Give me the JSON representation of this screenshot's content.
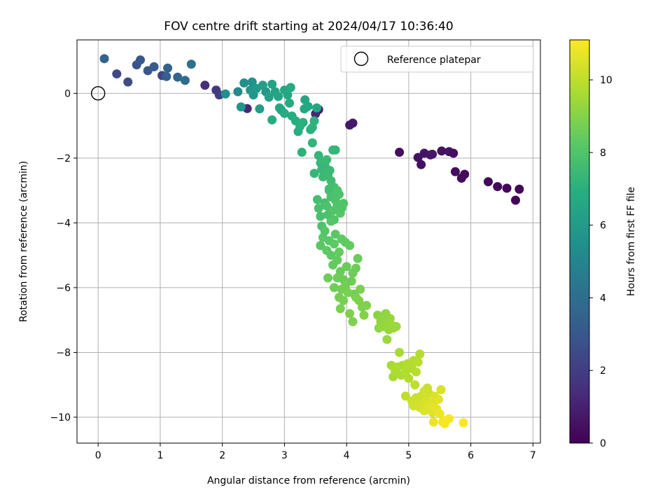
{
  "chart_data": {
    "type": "scatter",
    "title": "FOV centre drift starting at 2024/04/17 10:36:40",
    "xlabel": "Angular distance from reference (arcmin)",
    "ylabel": "Rotation from reference (arcmin)",
    "xlim": [
      -0.34,
      7.12
    ],
    "ylim": [
      -10.8,
      1.65
    ],
    "xticks": [
      0,
      1,
      2,
      3,
      4,
      5,
      6,
      7
    ],
    "yticks": [
      -10,
      -8,
      -6,
      -4,
      -2,
      0
    ],
    "grid": true,
    "legend": {
      "location": "top-right",
      "entries": [
        "Reference platepar"
      ]
    },
    "reference_point": {
      "x": 0,
      "y": 0
    },
    "colorbar": {
      "label": "Hours from first FF file",
      "min": 0,
      "max": 11.1,
      "ticks": [
        0,
        2,
        4,
        6,
        8,
        10
      ],
      "colormap": "viridis"
    },
    "series": [
      {
        "points": [
          [
            4.85,
            -1.82,
            0.4
          ],
          [
            5.15,
            -1.98,
            0.5
          ],
          [
            5.2,
            -2.2,
            0.5
          ],
          [
            5.25,
            -1.85,
            0.6
          ],
          [
            5.35,
            -1.9,
            0.6
          ],
          [
            5.38,
            -1.88,
            0.7
          ],
          [
            5.53,
            -1.78,
            0.5
          ],
          [
            5.65,
            -1.8,
            0.6
          ],
          [
            5.72,
            -1.85,
            0.4
          ],
          [
            5.75,
            -2.42,
            0.4
          ],
          [
            5.85,
            -2.62,
            0.3
          ],
          [
            5.9,
            -2.5,
            0.3
          ],
          [
            6.28,
            -2.73,
            0.2
          ],
          [
            6.43,
            -2.88,
            0.2
          ],
          [
            6.58,
            -2.93,
            0.2
          ],
          [
            6.72,
            -3.3,
            0.1
          ],
          [
            6.78,
            -2.96,
            0.1
          ],
          [
            4.05,
            -0.98,
            0.8
          ],
          [
            4.1,
            -0.92,
            0.8
          ],
          [
            3.55,
            -0.5,
            1.0
          ],
          [
            3.5,
            -0.63,
            1.2
          ],
          [
            1.72,
            0.25,
            1.5
          ],
          [
            1.9,
            0.1,
            1.8
          ],
          [
            1.95,
            -0.05,
            2.0
          ],
          [
            2.4,
            -0.47,
            1.2
          ],
          [
            1.03,
            0.55,
            2.2
          ],
          [
            0.3,
            0.6,
            2.4
          ],
          [
            0.48,
            0.35,
            2.6
          ],
          [
            0.62,
            0.88,
            2.8
          ],
          [
            0.68,
            1.03,
            3.0
          ],
          [
            0.8,
            0.7,
            3.0
          ],
          [
            0.9,
            0.82,
            3.2
          ],
          [
            1.1,
            0.52,
            3.4
          ],
          [
            1.12,
            0.78,
            3.5
          ],
          [
            1.28,
            0.5,
            3.7
          ],
          [
            1.4,
            0.4,
            3.8
          ],
          [
            1.5,
            0.9,
            4.0
          ],
          [
            0.1,
            1.07,
            3.5
          ],
          [
            2.05,
            -0.02,
            5.5
          ],
          [
            2.25,
            0.05,
            5.2
          ],
          [
            2.3,
            -0.42,
            5.8
          ],
          [
            2.35,
            0.32,
            5.5
          ],
          [
            2.45,
            0.1,
            5.8
          ],
          [
            2.48,
            0.35,
            5.6
          ],
          [
            2.5,
            -0.05,
            5.9
          ],
          [
            2.55,
            0.15,
            6.0
          ],
          [
            2.6,
            -0.48,
            6.1
          ],
          [
            2.65,
            0.25,
            6.2
          ],
          [
            2.7,
            0.05,
            6.0
          ],
          [
            2.75,
            -0.12,
            6.3
          ],
          [
            2.8,
            0.28,
            6.4
          ],
          [
            2.85,
            0.05,
            6.3
          ],
          [
            2.9,
            -0.1,
            6.5
          ],
          [
            2.92,
            -0.45,
            6.6
          ],
          [
            2.95,
            -0.52,
            6.5
          ],
          [
            3.0,
            0.1,
            6.5
          ],
          [
            3.05,
            -0.05,
            6.6
          ],
          [
            3.08,
            -0.3,
            6.7
          ],
          [
            3.1,
            0.18,
            6.7
          ],
          [
            3.12,
            -0.7,
            6.8
          ],
          [
            3.18,
            -0.85,
            6.9
          ],
          [
            3.22,
            -1.18,
            6.9
          ],
          [
            3.25,
            -1.02,
            7.0
          ],
          [
            3.3,
            -0.9,
            7.0
          ],
          [
            3.32,
            -0.48,
            6.6
          ],
          [
            3.33,
            -0.2,
            6.5
          ],
          [
            3.38,
            -0.4,
            6.6
          ],
          [
            3.42,
            -1.12,
            7.0
          ],
          [
            3.45,
            -1.05,
            7.1
          ],
          [
            3.48,
            -0.85,
            7.1
          ],
          [
            3.52,
            -0.45,
            6.5
          ],
          [
            2.8,
            -0.82,
            6.8
          ],
          [
            3.0,
            -0.62,
            6.8
          ],
          [
            3.28,
            -1.82,
            7.1
          ],
          [
            3.45,
            -1.53,
            7.2
          ],
          [
            3.48,
            -2.47,
            7.3
          ],
          [
            3.55,
            -1.92,
            7.3
          ],
          [
            3.58,
            -2.15,
            7.4
          ],
          [
            3.6,
            -2.35,
            7.4
          ],
          [
            3.62,
            -2.58,
            7.5
          ],
          [
            3.65,
            -2.22,
            7.4
          ],
          [
            3.68,
            -2.05,
            7.5
          ],
          [
            3.7,
            -2.52,
            7.5
          ],
          [
            3.72,
            -2.95,
            7.6
          ],
          [
            3.73,
            -2.38,
            7.5
          ],
          [
            3.75,
            -2.7,
            7.6
          ],
          [
            3.78,
            -1.75,
            7.3
          ],
          [
            3.82,
            -1.75,
            7.3
          ],
          [
            3.8,
            -2.9,
            7.7
          ],
          [
            3.53,
            -3.28,
            7.7
          ],
          [
            3.55,
            -3.55,
            7.8
          ],
          [
            3.58,
            -3.8,
            7.8
          ],
          [
            3.6,
            -4.1,
            7.9
          ],
          [
            3.65,
            -3.38,
            7.8
          ],
          [
            3.68,
            -3.48,
            7.9
          ],
          [
            3.7,
            -3.75,
            7.9
          ],
          [
            3.72,
            -3.0,
            7.7
          ],
          [
            3.75,
            -3.2,
            7.8
          ],
          [
            3.78,
            -3.62,
            8.0
          ],
          [
            3.8,
            -3.9,
            8.0
          ],
          [
            3.82,
            -3.3,
            7.9
          ],
          [
            3.85,
            -3.45,
            8.0
          ],
          [
            3.88,
            -3.12,
            7.9
          ],
          [
            3.9,
            -3.7,
            8.1
          ],
          [
            3.92,
            -3.55,
            8.0
          ],
          [
            3.95,
            -3.4,
            8.0
          ],
          [
            3.75,
            -3.95,
            8.1
          ],
          [
            3.85,
            -3.0,
            7.9
          ],
          [
            3.58,
            -4.7,
            8.2
          ],
          [
            3.62,
            -4.45,
            8.2
          ],
          [
            3.65,
            -4.25,
            8.1
          ],
          [
            3.68,
            -4.85,
            8.3
          ],
          [
            3.72,
            -4.55,
            8.2
          ],
          [
            3.75,
            -5.0,
            8.3
          ],
          [
            3.78,
            -5.3,
            8.4
          ],
          [
            3.8,
            -4.65,
            8.3
          ],
          [
            3.82,
            -4.35,
            8.2
          ],
          [
            3.85,
            -5.15,
            8.4
          ],
          [
            3.88,
            -4.9,
            8.4
          ],
          [
            3.9,
            -5.5,
            8.5
          ],
          [
            3.92,
            -4.5,
            8.3
          ],
          [
            3.95,
            -5.75,
            8.6
          ],
          [
            3.98,
            -4.6,
            8.3
          ],
          [
            4.0,
            -5.35,
            8.5
          ],
          [
            4.05,
            -4.7,
            8.4
          ],
          [
            4.08,
            -5.8,
            8.6
          ],
          [
            4.1,
            -5.55,
            8.6
          ],
          [
            4.12,
            -6.2,
            8.7
          ],
          [
            4.15,
            -5.4,
            8.6
          ],
          [
            4.18,
            -5.1,
            8.5
          ],
          [
            3.8,
            -6.0,
            8.6
          ],
          [
            3.85,
            -5.7,
            8.6
          ],
          [
            3.88,
            -6.3,
            8.7
          ],
          [
            3.92,
            -6.05,
            8.7
          ],
          [
            3.95,
            -6.4,
            8.8
          ],
          [
            3.98,
            -5.95,
            8.7
          ],
          [
            4.02,
            -6.15,
            8.8
          ],
          [
            4.05,
            -6.8,
            8.9
          ],
          [
            4.1,
            -7.05,
            8.9
          ],
          [
            4.15,
            -6.3,
            8.8
          ],
          [
            4.2,
            -6.4,
            8.9
          ],
          [
            4.22,
            -6.05,
            8.8
          ],
          [
            4.25,
            -6.6,
            8.9
          ],
          [
            4.28,
            -6.85,
            9.0
          ],
          [
            4.32,
            -6.55,
            8.9
          ],
          [
            3.7,
            -5.7,
            8.6
          ],
          [
            3.9,
            -6.65,
            8.8
          ],
          [
            4.5,
            -6.85,
            9.1
          ],
          [
            4.52,
            -7.25,
            9.2
          ],
          [
            4.55,
            -7.05,
            9.2
          ],
          [
            4.58,
            -6.95,
            9.2
          ],
          [
            4.6,
            -7.2,
            9.3
          ],
          [
            4.63,
            -6.8,
            9.2
          ],
          [
            4.65,
            -7.1,
            9.3
          ],
          [
            4.68,
            -7.3,
            9.3
          ],
          [
            4.7,
            -6.95,
            9.3
          ],
          [
            4.72,
            -7.15,
            9.4
          ],
          [
            4.75,
            -7.25,
            9.4
          ],
          [
            4.8,
            -7.2,
            9.4
          ],
          [
            4.65,
            -7.6,
            9.4
          ],
          [
            4.72,
            -8.4,
            9.6
          ],
          [
            4.75,
            -8.75,
            9.6
          ],
          [
            4.78,
            -8.55,
            9.7
          ],
          [
            4.82,
            -8.45,
            9.7
          ],
          [
            4.85,
            -8.0,
            9.6
          ],
          [
            4.88,
            -8.7,
            9.7
          ],
          [
            4.9,
            -8.4,
            9.7
          ],
          [
            4.95,
            -8.6,
            9.8
          ],
          [
            4.98,
            -8.35,
            9.8
          ],
          [
            5.0,
            -8.8,
            9.8
          ],
          [
            5.05,
            -8.5,
            9.8
          ],
          [
            5.08,
            -8.25,
            9.8
          ],
          [
            5.12,
            -8.6,
            9.9
          ],
          [
            5.15,
            -8.3,
            9.9
          ],
          [
            5.18,
            -8.05,
            9.8
          ],
          [
            4.95,
            -9.35,
            10.0
          ],
          [
            5.1,
            -9.0,
            10.0
          ],
          [
            5.05,
            -9.5,
            10.2
          ],
          [
            5.08,
            -9.65,
            10.3
          ],
          [
            5.12,
            -9.4,
            10.2
          ],
          [
            5.15,
            -9.55,
            10.3
          ],
          [
            5.18,
            -9.7,
            10.4
          ],
          [
            5.2,
            -9.35,
            10.2
          ],
          [
            5.22,
            -9.6,
            10.4
          ],
          [
            5.25,
            -9.8,
            10.5
          ],
          [
            5.28,
            -9.45,
            10.4
          ],
          [
            5.3,
            -9.6,
            10.5
          ],
          [
            5.32,
            -9.25,
            10.3
          ],
          [
            5.35,
            -9.7,
            10.6
          ],
          [
            5.38,
            -9.85,
            10.6
          ],
          [
            5.4,
            -9.55,
            10.6
          ],
          [
            5.42,
            -9.35,
            10.5
          ],
          [
            5.45,
            -9.75,
            10.7
          ],
          [
            5.48,
            -9.45,
            10.6
          ],
          [
            5.5,
            -9.9,
            10.8
          ],
          [
            5.52,
            -9.15,
            10.5
          ],
          [
            5.55,
            -10.15,
            10.9
          ],
          [
            5.58,
            -10.2,
            11.0
          ],
          [
            5.6,
            -10.1,
            11.0
          ],
          [
            5.65,
            -10.05,
            11.0
          ],
          [
            5.4,
            -10.15,
            10.8
          ],
          [
            5.25,
            -9.2,
            10.3
          ],
          [
            5.3,
            -9.1,
            10.2
          ],
          [
            5.88,
            -10.17,
            11.1
          ]
        ]
      }
    ]
  }
}
